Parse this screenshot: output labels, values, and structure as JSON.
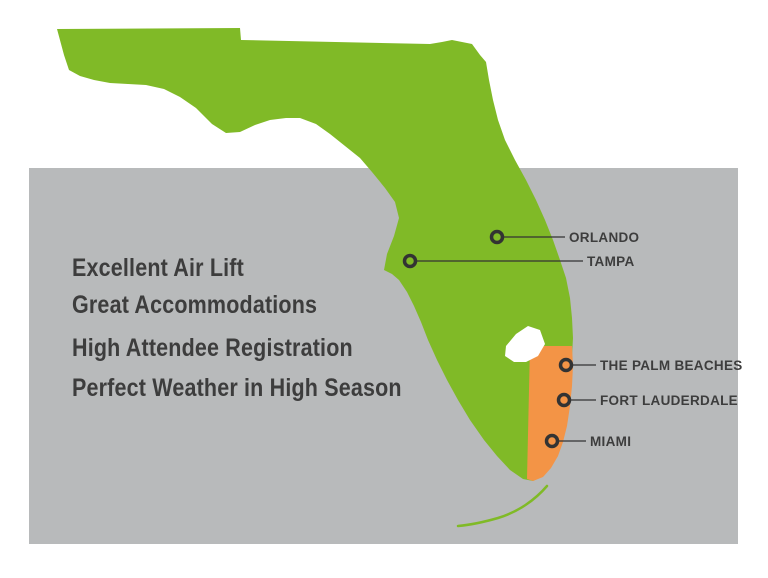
{
  "colors": {
    "background": "#ffffff",
    "panel": "#b8babb",
    "state_land": "#80ba27",
    "highlight_region": "#f39446",
    "lake": "#ffffff",
    "marker": "#333333",
    "text": "#3d3d3d"
  },
  "features": [
    "Excellent Air Lift",
    "Great Accommodations",
    "High Attendee Registration",
    "Perfect Weather in High Season"
  ],
  "cities": [
    {
      "name": "ORLANDO"
    },
    {
      "name": "TAMPA"
    },
    {
      "name": "THE PALM BEACHES"
    },
    {
      "name": "FORT LAUDERDALE"
    },
    {
      "name": "MIAMI"
    }
  ]
}
